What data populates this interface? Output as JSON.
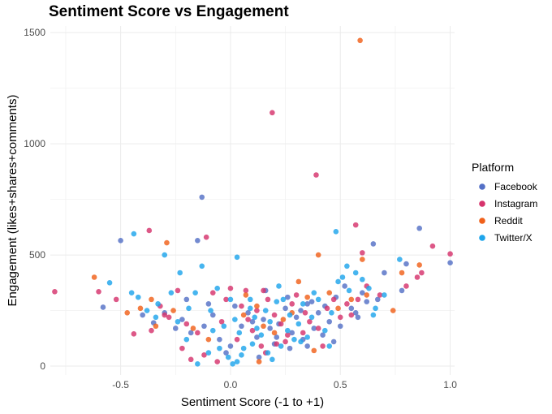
{
  "chart_data": {
    "type": "scatter",
    "title": "Sentiment Score vs Engagement",
    "xlabel": "Sentiment Score (-1 to +1)",
    "ylabel": "Engagement (likes+shares+comments)",
    "xlim": [
      -0.82,
      1.02
    ],
    "ylim": [
      -40,
      1530
    ],
    "x_ticks": [
      -0.5,
      0.0,
      0.5,
      1.0
    ],
    "x_tick_labels": [
      "-0.5",
      "0.0",
      "0.5",
      "1.0"
    ],
    "y_ticks": [
      0,
      500,
      1000,
      1500
    ],
    "y_tick_labels": [
      "0",
      "500",
      "1000",
      "1500"
    ],
    "grid": true,
    "legend": {
      "title": "Platform",
      "position": "right"
    },
    "series": [
      {
        "name": "Facebook",
        "color": "#5470C6",
        "points": [
          [
            -0.5,
            565
          ],
          [
            -0.13,
            760
          ],
          [
            -0.15,
            565
          ],
          [
            0.86,
            620
          ],
          [
            0.8,
            460
          ],
          [
            1.0,
            465
          ],
          [
            -0.58,
            265
          ],
          [
            -0.35,
            195
          ],
          [
            -0.3,
            240
          ],
          [
            -0.22,
            210
          ],
          [
            -0.18,
            150
          ],
          [
            -0.1,
            280
          ],
          [
            -0.05,
            120
          ],
          [
            0.0,
            90
          ],
          [
            0.05,
            180
          ],
          [
            0.08,
            240
          ],
          [
            0.12,
            130
          ],
          [
            0.15,
            210
          ],
          [
            0.18,
            170
          ],
          [
            0.2,
            100
          ],
          [
            0.22,
            190
          ],
          [
            0.25,
            260
          ],
          [
            0.28,
            150
          ],
          [
            0.3,
            220
          ],
          [
            0.33,
            120
          ],
          [
            0.35,
            280
          ],
          [
            0.38,
            170
          ],
          [
            0.4,
            240
          ],
          [
            0.42,
            140
          ],
          [
            0.45,
            200
          ],
          [
            0.48,
            310
          ],
          [
            0.5,
            180
          ],
          [
            0.55,
            260
          ],
          [
            0.58,
            220
          ],
          [
            0.62,
            290
          ],
          [
            0.65,
            550
          ],
          [
            0.7,
            420
          ],
          [
            0.78,
            340
          ],
          [
            0.6,
            330
          ],
          [
            0.52,
            360
          ],
          [
            0.43,
            270
          ],
          [
            0.37,
            290
          ],
          [
            0.32,
            250
          ],
          [
            0.26,
            310
          ],
          [
            0.16,
            340
          ],
          [
            0.1,
            200
          ],
          [
            0.02,
            270
          ],
          [
            -0.02,
            60
          ],
          [
            -0.08,
            230
          ],
          [
            -0.12,
            180
          ],
          [
            -0.2,
            300
          ],
          [
            -0.25,
            170
          ],
          [
            -0.4,
            230
          ],
          [
            0.13,
            40
          ],
          [
            0.21,
            130
          ],
          [
            0.27,
            80
          ],
          [
            0.35,
            90
          ],
          [
            0.47,
            110
          ],
          [
            0.57,
            240
          ],
          [
            0.67,
            300
          ]
        ]
      },
      {
        "name": "Instagram",
        "color": "#D6336C",
        "points": [
          [
            0.19,
            1140
          ],
          [
            0.39,
            860
          ],
          [
            -0.37,
            610
          ],
          [
            0.57,
            635
          ],
          [
            0.92,
            540
          ],
          [
            1.0,
            505
          ],
          [
            0.6,
            510
          ],
          [
            -0.11,
            580
          ],
          [
            -0.8,
            335
          ],
          [
            -0.6,
            335
          ],
          [
            -0.52,
            300
          ],
          [
            -0.32,
            270
          ],
          [
            -0.24,
            340
          ],
          [
            -0.28,
            220
          ],
          [
            -0.2,
            190
          ],
          [
            -0.15,
            150
          ],
          [
            -0.08,
            330
          ],
          [
            -0.02,
            300
          ],
          [
            0.0,
            350
          ],
          [
            0.05,
            270
          ],
          [
            0.08,
            210
          ],
          [
            0.1,
            160
          ],
          [
            0.12,
            250
          ],
          [
            0.15,
            340
          ],
          [
            0.17,
            300
          ],
          [
            0.2,
            230
          ],
          [
            0.23,
            190
          ],
          [
            0.26,
            140
          ],
          [
            0.28,
            280
          ],
          [
            0.3,
            320
          ],
          [
            0.34,
            240
          ],
          [
            0.36,
            200
          ],
          [
            0.4,
            170
          ],
          [
            0.44,
            260
          ],
          [
            0.47,
            300
          ],
          [
            0.5,
            220
          ],
          [
            0.53,
            280
          ],
          [
            0.58,
            300
          ],
          [
            0.62,
            360
          ],
          [
            0.68,
            320
          ],
          [
            0.8,
            360
          ],
          [
            0.87,
            420
          ],
          [
            0.85,
            400
          ],
          [
            -0.44,
            145
          ],
          [
            -0.22,
            80
          ],
          [
            -0.18,
            30
          ],
          [
            -0.12,
            50
          ],
          [
            -0.06,
            20
          ],
          [
            0.03,
            120
          ],
          [
            0.14,
            90
          ],
          [
            0.16,
            60
          ],
          [
            0.21,
            100
          ],
          [
            0.25,
            110
          ],
          [
            0.33,
            150
          ],
          [
            0.42,
            90
          ],
          [
            0.55,
            230
          ],
          [
            -0.36,
            160
          ],
          [
            -0.3,
            230
          ],
          [
            0.07,
            340
          ],
          [
            -0.04,
            200
          ]
        ]
      },
      {
        "name": "Reddit",
        "color": "#F0601A",
        "points": [
          [
            0.59,
            1465
          ],
          [
            -0.29,
            555
          ],
          [
            0.4,
            500
          ],
          [
            -0.62,
            400
          ],
          [
            0.86,
            455
          ],
          [
            0.6,
            480
          ],
          [
            -0.47,
            240
          ],
          [
            -0.41,
            260
          ],
          [
            -0.34,
            180
          ],
          [
            -0.26,
            250
          ],
          [
            -0.17,
            170
          ],
          [
            -0.1,
            120
          ],
          [
            0.06,
            230
          ],
          [
            0.07,
            320
          ],
          [
            0.12,
            270
          ],
          [
            0.15,
            180
          ],
          [
            0.2,
            150
          ],
          [
            0.24,
            210
          ],
          [
            0.28,
            240
          ],
          [
            0.31,
            380
          ],
          [
            0.35,
            310
          ],
          [
            0.38,
            70
          ],
          [
            0.45,
            330
          ],
          [
            0.49,
            260
          ],
          [
            0.55,
            300
          ],
          [
            0.62,
            320
          ],
          [
            0.74,
            250
          ],
          [
            0.78,
            420
          ],
          [
            -0.36,
            300
          ],
          [
            0.13,
            20
          ]
        ]
      },
      {
        "name": "Twitter/X",
        "color": "#1EA5EB",
        "points": [
          [
            -0.44,
            595
          ],
          [
            0.48,
            605
          ],
          [
            0.03,
            490
          ],
          [
            -0.3,
            500
          ],
          [
            -0.55,
            375
          ],
          [
            -0.45,
            330
          ],
          [
            -0.42,
            310
          ],
          [
            -0.38,
            250
          ],
          [
            -0.33,
            280
          ],
          [
            -0.27,
            330
          ],
          [
            -0.23,
            420
          ],
          [
            -0.19,
            260
          ],
          [
            -0.16,
            330
          ],
          [
            -0.13,
            450
          ],
          [
            -0.09,
            250
          ],
          [
            -0.06,
            350
          ],
          [
            -0.03,
            180
          ],
          [
            0.0,
            300
          ],
          [
            0.02,
            210
          ],
          [
            0.04,
            150
          ],
          [
            0.06,
            80
          ],
          [
            0.09,
            300
          ],
          [
            0.11,
            220
          ],
          [
            0.14,
            140
          ],
          [
            0.16,
            250
          ],
          [
            0.18,
            200
          ],
          [
            0.22,
            360
          ],
          [
            0.24,
            300
          ],
          [
            0.27,
            230
          ],
          [
            0.29,
            120
          ],
          [
            0.31,
            190
          ],
          [
            0.33,
            280
          ],
          [
            0.35,
            130
          ],
          [
            0.37,
            220
          ],
          [
            0.4,
            300
          ],
          [
            0.43,
            160
          ],
          [
            0.46,
            240
          ],
          [
            0.49,
            380
          ],
          [
            0.51,
            400
          ],
          [
            0.54,
            340
          ],
          [
            0.57,
            420
          ],
          [
            0.6,
            390
          ],
          [
            0.63,
            350
          ],
          [
            0.66,
            260
          ],
          [
            0.7,
            320
          ],
          [
            0.77,
            480
          ],
          [
            -0.2,
            120
          ],
          [
            -0.1,
            60
          ],
          [
            -0.05,
            80
          ],
          [
            -0.01,
            40
          ],
          [
            0.01,
            10
          ],
          [
            0.03,
            20
          ],
          [
            0.05,
            50
          ],
          [
            0.1,
            100
          ],
          [
            0.17,
            60
          ],
          [
            0.19,
            30
          ],
          [
            0.23,
            90
          ],
          [
            0.26,
            160
          ],
          [
            0.32,
            110
          ],
          [
            0.45,
            90
          ],
          [
            -0.15,
            10
          ],
          [
            -0.08,
            160
          ],
          [
            0.12,
            170
          ],
          [
            0.21,
            290
          ],
          [
            0.38,
            330
          ],
          [
            0.53,
            450
          ],
          [
            0.65,
            230
          ],
          [
            -0.24,
            200
          ],
          [
            -0.34,
            220
          ],
          [
            0.09,
            260
          ]
        ]
      }
    ]
  }
}
